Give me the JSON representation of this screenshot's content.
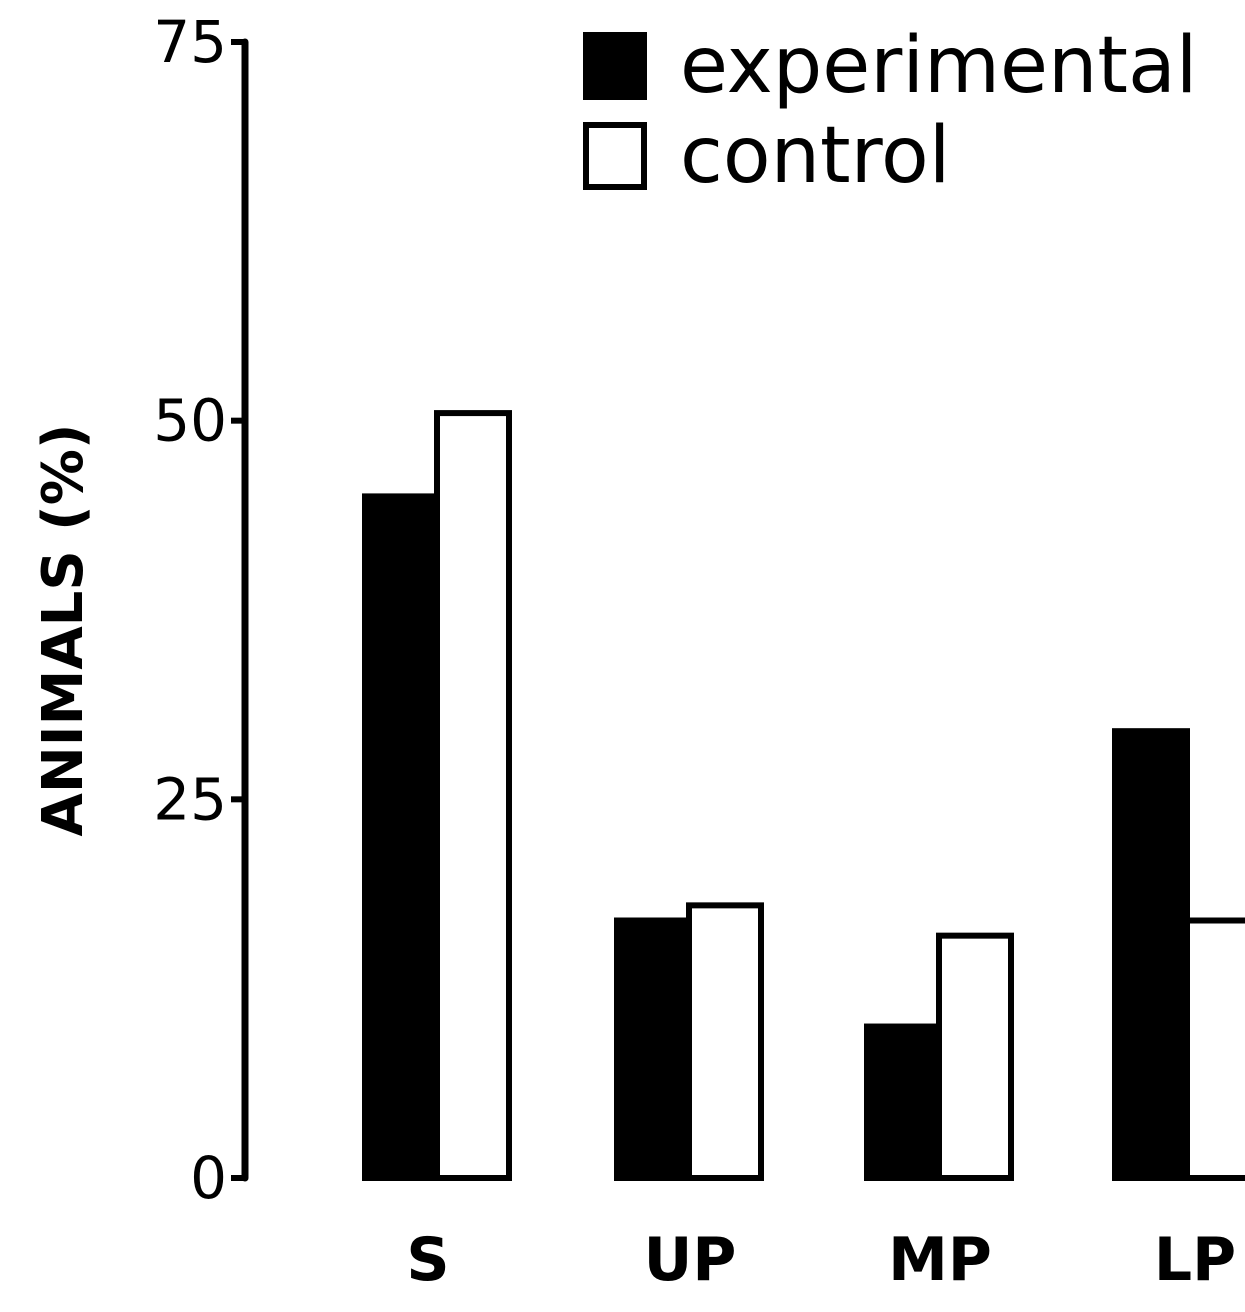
{
  "chart_data": {
    "type": "bar",
    "title": "",
    "xlabel": "",
    "ylabel": "ANIMALS (%)",
    "ylim": [
      0,
      75
    ],
    "yticks": [
      0,
      25,
      50,
      75
    ],
    "yticklabels": [
      "0",
      "25",
      "50",
      "75"
    ],
    "categories": [
      "S",
      "UP",
      "MP",
      "LP"
    ],
    "series": [
      {
        "name": "experimental",
        "values": [
          45,
          17,
          10,
          29.5
        ],
        "fill": "#000000"
      },
      {
        "name": "control",
        "values": [
          50.5,
          18,
          16,
          17
        ],
        "fill": "#ffffff"
      }
    ],
    "legend_position": "top-right",
    "grid": false
  }
}
